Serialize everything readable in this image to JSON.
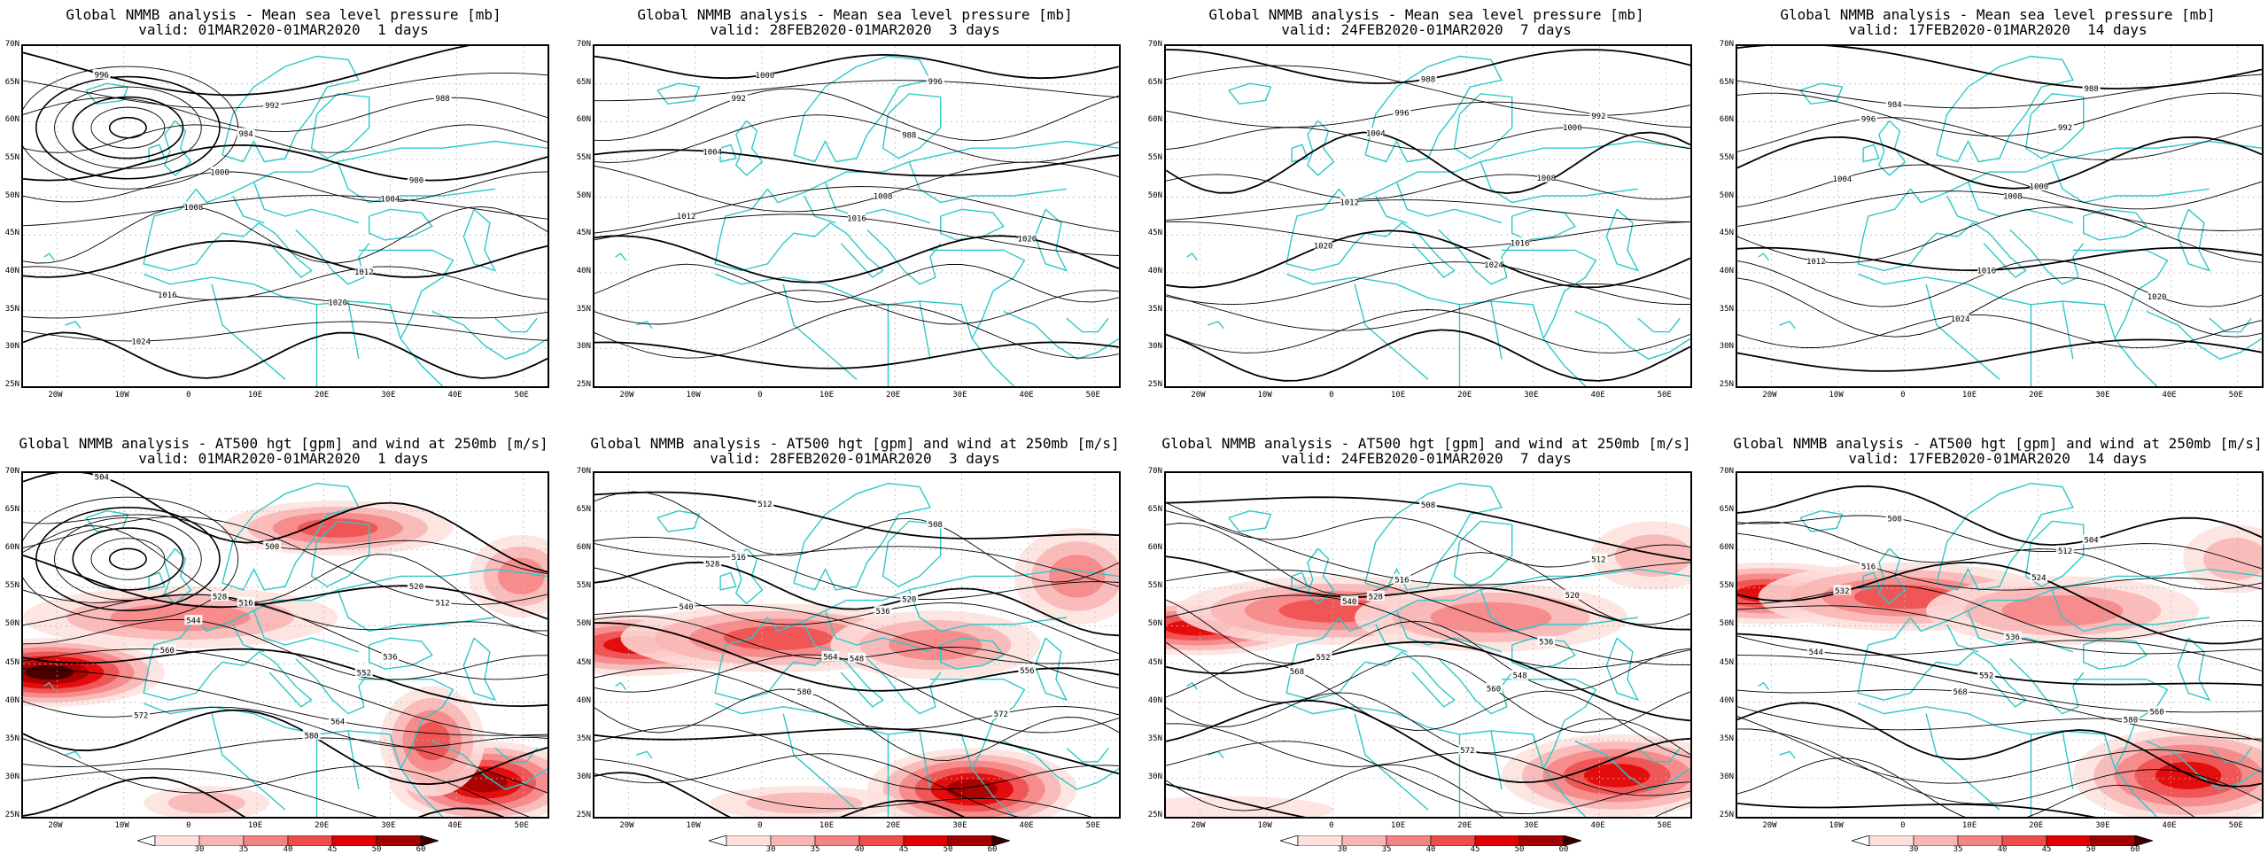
{
  "panels": [
    {
      "row": "mslp",
      "title": "Global NMMB analysis - Mean sea level pressure [mb]",
      "valid": "valid: 01MAR2020-01MAR2020  1 days"
    },
    {
      "row": "mslp",
      "title": "Global NMMB analysis - Mean sea level pressure [mb]",
      "valid": "valid: 28FEB2020-01MAR2020  3 days"
    },
    {
      "row": "mslp",
      "title": "Global NMMB analysis - Mean sea level pressure [mb]",
      "valid": "valid: 24FEB2020-01MAR2020  7 days"
    },
    {
      "row": "mslp",
      "title": "Global NMMB analysis - Mean sea level pressure [mb]",
      "valid": "valid: 17FEB2020-01MAR2020  14 days"
    },
    {
      "row": "z500",
      "title": "Global NMMB analysis - AT500 hgt [gpm] and wind at 250mb [m/s]",
      "valid": "valid: 01MAR2020-01MAR2020  1 days"
    },
    {
      "row": "z500",
      "title": "Global NMMB analysis - AT500 hgt [gpm] and wind at 250mb [m/s]",
      "valid": "valid: 28FEB2020-01MAR2020  3 days"
    },
    {
      "row": "z500",
      "title": "Global NMMB analysis - AT500 hgt [gpm] and wind at 250mb [m/s]",
      "valid": "valid: 24FEB2020-01MAR2020  7 days"
    },
    {
      "row": "z500",
      "title": "Global NMMB analysis - AT500 hgt [gpm] and wind at 250mb [m/s]",
      "valid": "valid: 17FEB2020-01MAR2020  14 days"
    }
  ],
  "lat_labels": [
    "70N",
    "65N",
    "60N",
    "55N",
    "50N",
    "45N",
    "40N",
    "35N",
    "30N",
    "25N"
  ],
  "lon_labels": [
    "20W",
    "10W",
    "0",
    "10E",
    "20E",
    "30E",
    "40E",
    "50E"
  ],
  "mslp_contour_labels": [
    [
      "996",
      "992",
      "988",
      "984",
      "980",
      "1000",
      "1004",
      "1008",
      "1012",
      "1016",
      "1020",
      "1024"
    ],
    [
      "1000",
      "996",
      "992",
      "988",
      "1004",
      "1008",
      "1012",
      "1016",
      "1020"
    ],
    [
      "988",
      "992",
      "996",
      "1000",
      "1004",
      "1008",
      "1012",
      "1016",
      "1020",
      "1024"
    ],
    [
      "988",
      "984",
      "992",
      "996",
      "1000",
      "1004",
      "1008",
      "1012",
      "1016",
      "1020",
      "1024"
    ]
  ],
  "z500_contour_labels": [
    [
      "504",
      "500",
      "512",
      "516",
      "520",
      "528",
      "536",
      "544",
      "552",
      "560",
      "564",
      "572",
      "580"
    ],
    [
      "512",
      "508",
      "516",
      "520",
      "528",
      "536",
      "540",
      "548",
      "556",
      "564",
      "572",
      "580"
    ],
    [
      "508",
      "512",
      "516",
      "520",
      "528",
      "536",
      "540",
      "548",
      "552",
      "560",
      "568",
      "572"
    ],
    [
      "504",
      "508",
      "512",
      "516",
      "524",
      "532",
      "536",
      "544",
      "552",
      "560",
      "568",
      "580"
    ]
  ],
  "colorbar": {
    "ticks": [
      "30",
      "35",
      "40",
      "45",
      "50",
      "60"
    ],
    "colors": [
      "#ffffff",
      "#fde0dd",
      "#f9b4b4",
      "#f48484",
      "#ef4c4c",
      "#e00000",
      "#a00000",
      "#3a0000"
    ]
  },
  "colors": {
    "coast": "#2ec8c8",
    "contour": "#000000",
    "grid": "#bbbbbb"
  }
}
